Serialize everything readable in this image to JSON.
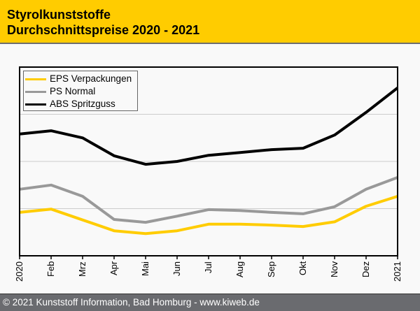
{
  "header": {
    "title_line1": "Styrolkunststoffe",
    "title_line2": "Durchschnittspreise 2020 - 2021"
  },
  "footer": {
    "copyright": "© 2021 Kunststoff Information, Bad Homburg - www.kiweb.de"
  },
  "colors": {
    "header_bg": "#ffcc00",
    "footer_bg": "#6a6b6f",
    "eps": "#ffcc00",
    "ps": "#999999",
    "abs": "#000000",
    "grid": "#cccccc"
  },
  "chart_data": {
    "type": "line",
    "title": "Styrolkunststoffe Durchschnittspreise 2020 - 2021",
    "xlabel": "",
    "ylabel": "",
    "x": [
      "2020",
      "Feb",
      "Mrz",
      "Apr",
      "Mai",
      "Jun",
      "Jul",
      "Aug",
      "Sep",
      "Okt",
      "Nov",
      "Dez",
      "2021"
    ],
    "ylim": [
      0,
      4
    ],
    "y_ticks_labeled": false,
    "y_gridlines": [
      1,
      2,
      3
    ],
    "y_units_note": "relative scale (no y-axis labels shown)",
    "grid": true,
    "legend_position": "top-left",
    "series": [
      {
        "name": "EPS Verpackungen",
        "color": "#ffcc00",
        "values": [
          0.92,
          0.99,
          0.76,
          0.53,
          0.47,
          0.53,
          0.67,
          0.67,
          0.65,
          0.62,
          0.72,
          1.05,
          1.26
        ]
      },
      {
        "name": "PS Normal",
        "color": "#999999",
        "values": [
          1.41,
          1.5,
          1.26,
          0.77,
          0.71,
          0.84,
          0.98,
          0.96,
          0.92,
          0.89,
          1.04,
          1.41,
          1.66
        ]
      },
      {
        "name": "ABS Spritzguss",
        "color": "#000000",
        "values": [
          2.58,
          2.65,
          2.5,
          2.12,
          1.94,
          2.0,
          2.13,
          2.19,
          2.25,
          2.28,
          2.56,
          3.04,
          3.56
        ]
      }
    ]
  }
}
